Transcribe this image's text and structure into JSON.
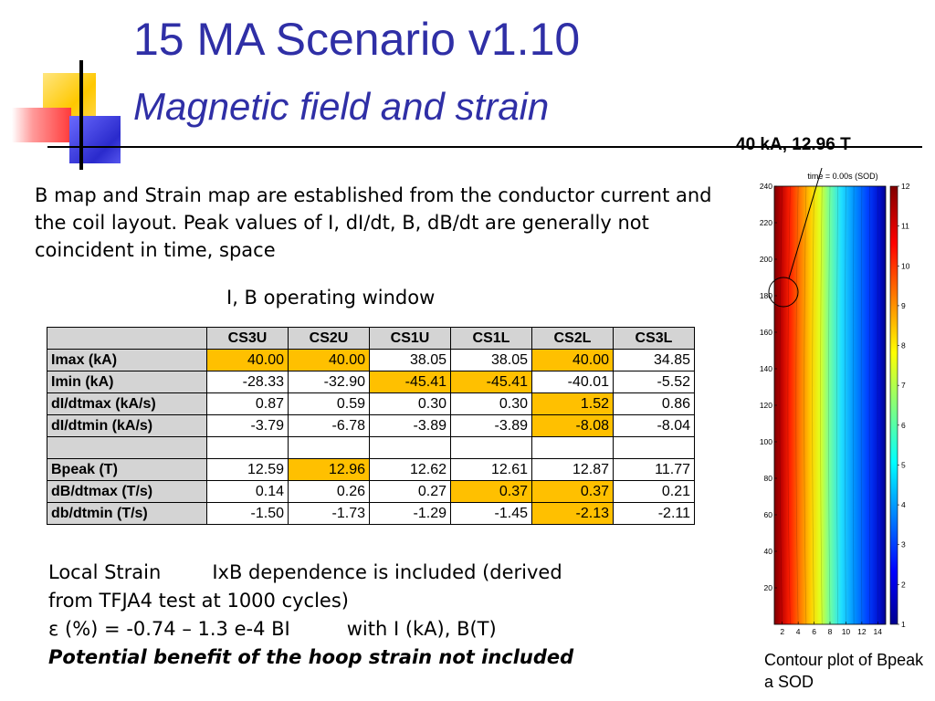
{
  "title": "15 MA Scenario v1.10",
  "subtitle": "Magnetic field and strain",
  "intro": "B map and Strain map are established from the conductor current and the coil layout. Peak values of I, dI/dt, B, dB/dt are generally not coincident in time, space",
  "window_label": "I, B operating window",
  "table": {
    "columns": [
      "CS3U",
      "CS2U",
      "CS1U",
      "CS1L",
      "CS2L",
      "CS3L"
    ],
    "rows": [
      {
        "label": "Imax (kA)",
        "values": [
          "40.00",
          "40.00",
          "38.05",
          "38.05",
          "40.00",
          "34.85"
        ],
        "highlight": [
          true,
          true,
          false,
          false,
          true,
          false
        ]
      },
      {
        "label": "Imin (kA)",
        "values": [
          "-28.33",
          "-32.90",
          "-45.41",
          "-45.41",
          "-40.01",
          "-5.52"
        ],
        "highlight": [
          false,
          false,
          true,
          true,
          false,
          false
        ]
      },
      {
        "label": "dI/dtmax (kA/s)",
        "values": [
          "0.87",
          "0.59",
          "0.30",
          "0.30",
          "1.52",
          "0.86"
        ],
        "highlight": [
          false,
          false,
          false,
          false,
          true,
          false
        ]
      },
      {
        "label": "dI/dtmin (kA/s)",
        "values": [
          "-3.79",
          "-6.78",
          "-3.89",
          "-3.89",
          "-8.08",
          "-8.04"
        ],
        "highlight": [
          false,
          false,
          false,
          false,
          true,
          false
        ]
      },
      {
        "label": "",
        "values": [
          "",
          "",
          "",
          "",
          "",
          ""
        ],
        "highlight": [
          false,
          false,
          false,
          false,
          false,
          false
        ]
      },
      {
        "label": "Bpeak (T)",
        "values": [
          "12.59",
          "12.96",
          "12.62",
          "12.61",
          "12.87",
          "11.77"
        ],
        "highlight": [
          false,
          true,
          false,
          false,
          false,
          false
        ]
      },
      {
        "label": "dB/dtmax (T/s)",
        "values": [
          "0.14",
          "0.26",
          "0.27",
          "0.37",
          "0.37",
          "0.21"
        ],
        "highlight": [
          false,
          false,
          false,
          true,
          true,
          false
        ]
      },
      {
        "label": "db/dtmin (T/s)",
        "values": [
          "-1.50",
          "-1.73",
          "-1.29",
          "-1.45",
          "-2.13",
          "-2.11"
        ],
        "highlight": [
          false,
          false,
          false,
          false,
          true,
          false
        ]
      }
    ],
    "highlight_color": "#ffc000"
  },
  "strain": {
    "line1a": "Local Strain",
    "line1b": "IxB dependence is included (derived",
    "line2": "from TFJA4 test at 1000 cycles)",
    "line3a": "ε (%) = -0.74 – 1.3 e-4 BI",
    "line3b": "with I (kA), B(T)",
    "line4": "Potential benefit of the hoop strain not included"
  },
  "peak_label": "40 kA, 12.96 T",
  "caption": "Contour plot of Bpeak a SOD",
  "chart_data": {
    "type": "heatmap",
    "title": "time = 0.00s (SOD)",
    "x_ticks": [
      2,
      4,
      6,
      8,
      10,
      12,
      14
    ],
    "y_ticks": [
      20,
      40,
      60,
      80,
      100,
      120,
      140,
      160,
      180,
      200,
      220,
      240
    ],
    "xlim": [
      1,
      15
    ],
    "ylim": [
      0,
      240
    ],
    "colorbar_ticks": [
      1,
      2,
      3,
      4,
      5,
      6,
      7,
      8,
      9,
      10,
      11,
      12
    ],
    "colorbar_range": [
      1,
      12
    ],
    "colormap": "jet",
    "description_field": "Bpeak (T)",
    "peak_marker": {
      "x": 1,
      "y": 182
    }
  }
}
